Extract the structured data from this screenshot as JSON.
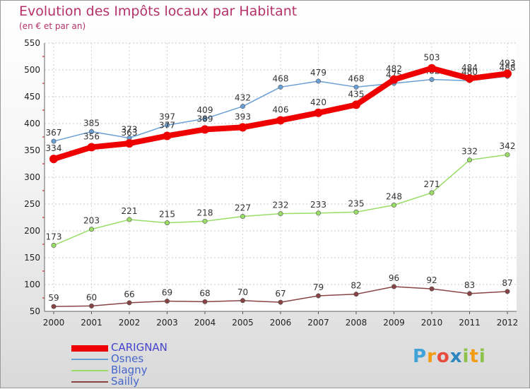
{
  "title": "Evolution des Impôts locaux par Habitant",
  "subtitle": "(en € et par an)",
  "logo": {
    "letters": [
      "P",
      "r",
      "o",
      "x",
      "i",
      "t",
      "i"
    ],
    "colors": [
      "#3fa3d8",
      "#f39c12",
      "#e74c3c",
      "#2e86c1",
      "#8bc34a",
      "#f39c12",
      "#8bc34a"
    ]
  },
  "chart_data": {
    "type": "line",
    "title": "Evolution des Impôts locaux par Habitant",
    "subtitle": "(en € et par an)",
    "x": [
      "2000",
      "2001",
      "2002",
      "2003",
      "2004",
      "2005",
      "2006",
      "2007",
      "2008",
      "2009",
      "2010",
      "2011",
      "2012"
    ],
    "ylim": [
      50,
      550
    ],
    "yticks": [
      50,
      100,
      150,
      200,
      250,
      300,
      350,
      400,
      450,
      500,
      550
    ],
    "grid": true,
    "legend_position": "bottom-left",
    "series": [
      {
        "name": "CARIGNAN",
        "color": "#ee0000",
        "values": [
          334,
          356,
          363,
          377,
          389,
          393,
          406,
          420,
          435,
          482,
          503,
          484,
          493
        ]
      },
      {
        "name": "Osnes",
        "color": "#6a9fd4",
        "values": [
          367,
          385,
          373,
          397,
          409,
          432,
          468,
          479,
          468,
          475,
          482,
          480,
          488
        ]
      },
      {
        "name": "Blagny",
        "color": "#99dd66",
        "values": [
          173,
          203,
          221,
          215,
          218,
          227,
          232,
          233,
          235,
          248,
          271,
          332,
          342
        ]
      },
      {
        "name": "Sailly",
        "color": "#884444",
        "values": [
          59,
          60,
          66,
          69,
          68,
          70,
          67,
          79,
          82,
          96,
          92,
          83,
          87
        ]
      }
    ]
  }
}
